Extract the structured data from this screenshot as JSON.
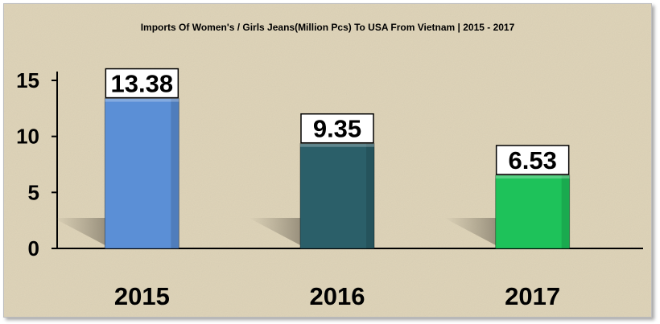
{
  "chart_data": {
    "type": "bar",
    "title": "Imports Of Women's / Girls Jeans(Million Pcs) To USA From Vietnam | 2015 - 2017",
    "categories": [
      "2015",
      "2016",
      "2017"
    ],
    "values": [
      13.38,
      9.35,
      6.53
    ],
    "value_labels": [
      "13.38",
      "9.35",
      "6.53"
    ],
    "bar_colors": [
      "#5b8fd6",
      "#2b5f69",
      "#1ec25a"
    ],
    "ylim": [
      0,
      15
    ],
    "yticks": [
      0,
      5,
      10,
      15
    ],
    "ytick_labels": [
      "0",
      "5",
      "10",
      "15"
    ],
    "grid": false,
    "xlabel": "",
    "ylabel": "",
    "background_color": "#ddd2b6",
    "axis_color": "#000000"
  }
}
